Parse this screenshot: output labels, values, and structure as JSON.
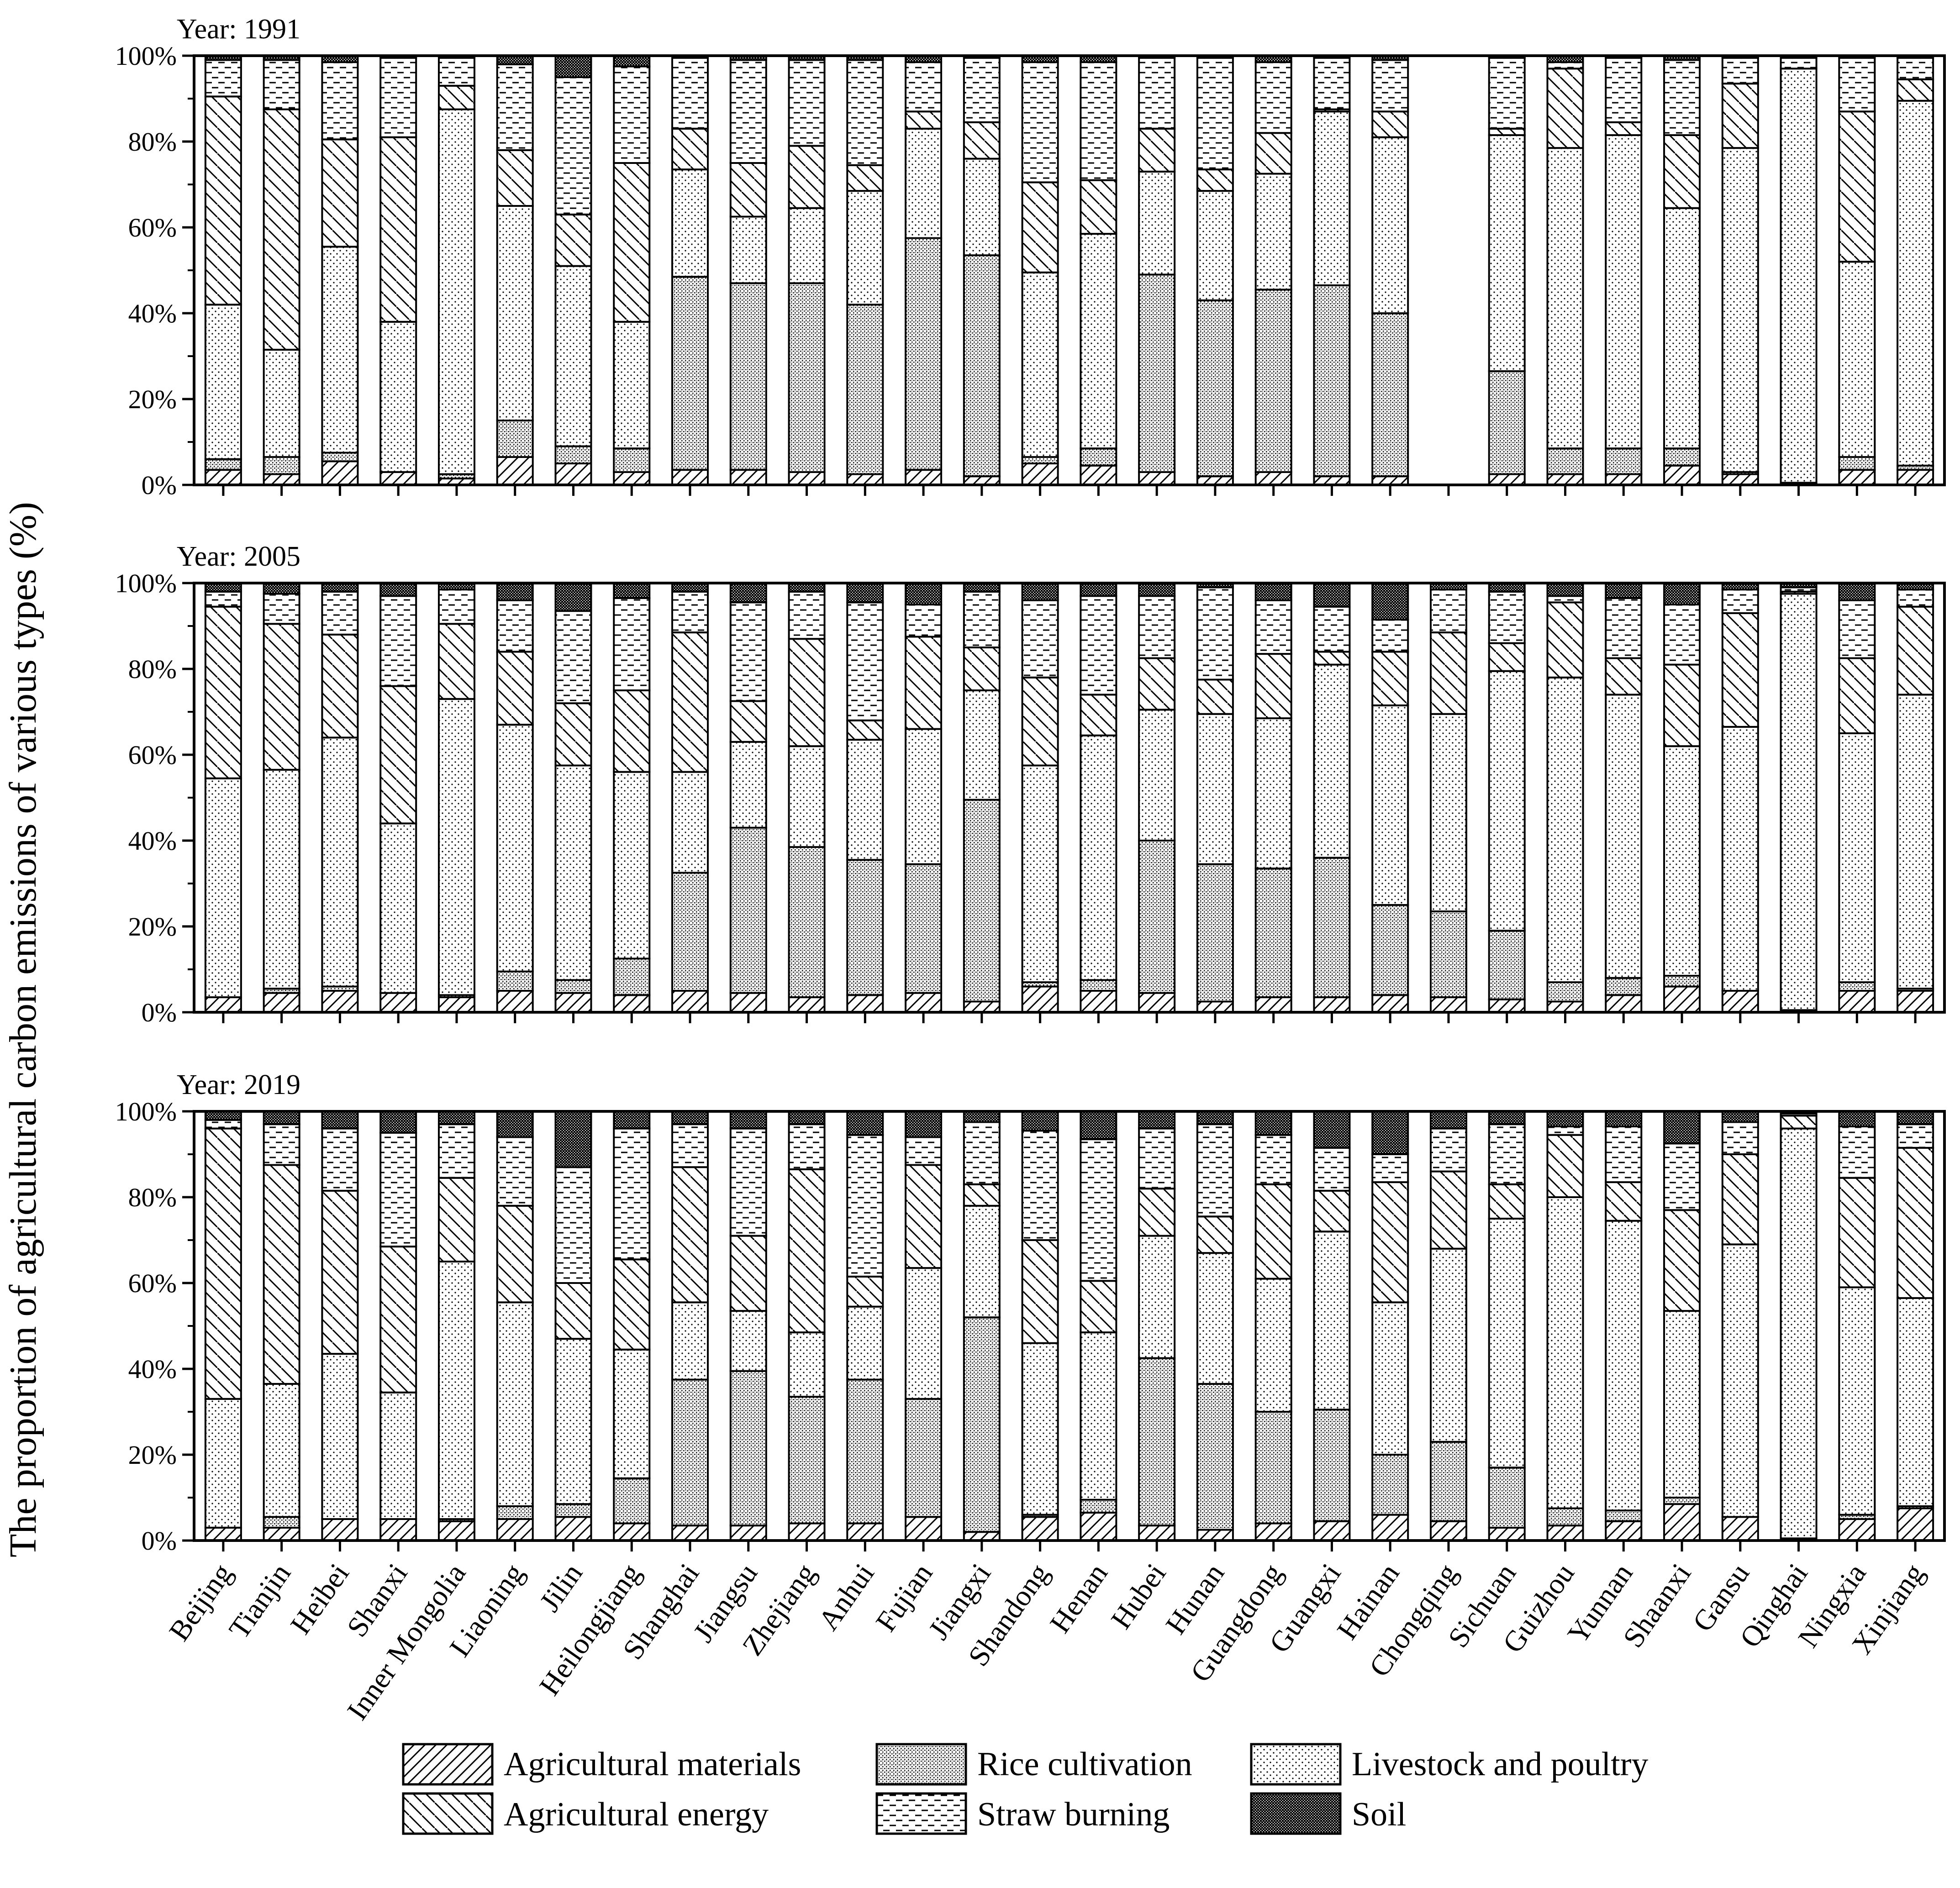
{
  "chart_data": {
    "type": "bar",
    "stacked": true,
    "ylabel": "The proportion of agricultural carbon emissions of various types (%)",
    "y_ticks": [
      "0%",
      "20%",
      "40%",
      "60%",
      "80%",
      "100%"
    ],
    "ylim": [
      0,
      100
    ],
    "categories": [
      "Beijing",
      "Tianjin",
      "Heibei",
      "Shanxi",
      "Inner Mongolia",
      "Liaoning",
      "Jilin",
      "Heilongjiang",
      "Shanghai",
      "Jiangsu",
      "Zhejiang",
      "Anhui",
      "Fujian",
      "Jiangxi",
      "Shandong",
      "Henan",
      "Hubei",
      "Hunan",
      "Guangdong",
      "Guangxi",
      "Hainan",
      "Chongqing",
      "Sichuan",
      "Guizhou",
      "Yunnan",
      "Shaanxi",
      "Gansu",
      "Qinghai",
      "Ningxia",
      "Xinjiang"
    ],
    "series_names": [
      "Agricultural materials",
      "Rice cultivation",
      "Livestock and poultry",
      "Agricultural energy",
      "Straw burning",
      "Soil"
    ],
    "legend": [
      "Agricultural materials",
      "Rice cultivation",
      "Livestock and poultry",
      "Agricultural energy",
      "Straw burning",
      "Soil"
    ],
    "panels": [
      {
        "title": "Year: 1991",
        "stacks": [
          [
            3.5,
            2.5,
            36,
            48.5,
            8.5,
            1
          ],
          [
            2.5,
            4,
            25,
            56,
            11.5,
            1
          ],
          [
            5.5,
            2,
            48,
            25,
            18,
            1.5
          ],
          [
            3,
            0,
            35,
            43,
            18.5,
            0.5
          ],
          [
            1.5,
            1,
            85,
            5.5,
            6.5,
            0.5
          ],
          [
            6.5,
            8.5,
            50,
            13,
            20,
            2
          ],
          [
            5,
            4,
            42,
            12,
            32,
            5
          ],
          [
            3,
            5.5,
            29.5,
            37,
            22.5,
            2.5
          ],
          [
            3.5,
            45,
            25,
            9.5,
            16.5,
            0.5
          ],
          [
            3.5,
            43.5,
            15.5,
            12.5,
            24,
            1
          ],
          [
            3,
            44,
            17.5,
            14.5,
            20,
            1
          ],
          [
            2.5,
            39.5,
            26.5,
            6,
            24.5,
            1
          ],
          [
            3.5,
            54,
            25.5,
            4,
            11.5,
            1.5
          ],
          [
            2,
            51.5,
            22.5,
            8.5,
            15,
            0.5
          ],
          [
            5,
            1.5,
            43,
            21,
            28,
            1.5
          ],
          [
            4.5,
            4,
            50,
            12.5,
            27.5,
            1.5
          ],
          [
            3,
            46,
            24,
            10,
            16.5,
            0.5
          ],
          [
            2,
            41,
            25.5,
            5,
            26,
            0.5
          ],
          [
            3,
            42.5,
            27,
            9.5,
            16.5,
            1.5
          ],
          [
            2,
            44.5,
            40.5,
            0.5,
            12,
            0.5
          ],
          [
            2,
            38,
            41,
            6,
            12,
            1
          ],
          [
            0,
            0,
            0,
            0,
            0,
            0
          ],
          [
            2.5,
            24,
            55,
            1.5,
            16.5,
            0.5
          ],
          [
            2.5,
            6,
            70,
            18.5,
            1.5,
            1.5
          ],
          [
            2.5,
            6,
            73,
            3,
            15,
            0.5
          ],
          [
            4.5,
            4,
            56,
            17,
            17.5,
            1
          ],
          [
            2.5,
            0.5,
            75.5,
            15,
            6,
            0.5
          ],
          [
            0.5,
            0,
            96.5,
            0,
            2.5,
            0.5
          ],
          [
            3.5,
            3,
            45.5,
            35,
            12.5,
            0.5
          ],
          [
            3.5,
            1,
            85,
            5,
            5,
            0.5
          ]
        ]
      },
      {
        "title": "Year: 2005",
        "stacks": [
          [
            3.5,
            0,
            51,
            40,
            3.5,
            2
          ],
          [
            4.5,
            1,
            51,
            34,
            7,
            2.5
          ],
          [
            5,
            1,
            58,
            24,
            10,
            2
          ],
          [
            4.5,
            0,
            39.5,
            32,
            21,
            3
          ],
          [
            3.5,
            0.5,
            69,
            17.5,
            8,
            1.5
          ],
          [
            5,
            4.5,
            57.5,
            17,
            12,
            4
          ],
          [
            4.5,
            3,
            50,
            14.5,
            21.5,
            6.5
          ],
          [
            4,
            8.5,
            43.5,
            19,
            21.5,
            3.5
          ],
          [
            5,
            27.5,
            23.5,
            32.5,
            9.5,
            2
          ],
          [
            4.5,
            38.5,
            20,
            9.5,
            23,
            4.5
          ],
          [
            3.5,
            35,
            23.5,
            25,
            11,
            2
          ],
          [
            4,
            31.5,
            28,
            4.5,
            27.5,
            4.5
          ],
          [
            4.5,
            30,
            31.5,
            21.5,
            7.5,
            5
          ],
          [
            2.5,
            47,
            25.5,
            10,
            13,
            2
          ],
          [
            6,
            1,
            50.5,
            20.5,
            18,
            4
          ],
          [
            5,
            2.5,
            57,
            9.5,
            23,
            3
          ],
          [
            4.5,
            35.5,
            30.5,
            12,
            14.5,
            3
          ],
          [
            2.5,
            32,
            35,
            8,
            21.5,
            1
          ],
          [
            3.5,
            30,
            35,
            15,
            12.5,
            4
          ],
          [
            3.5,
            32.5,
            45,
            3,
            10.5,
            5.5
          ],
          [
            4,
            21,
            46.5,
            12.5,
            7.5,
            8.5
          ],
          [
            3.5,
            20,
            46,
            19,
            10,
            1.5
          ],
          [
            3,
            16,
            60.5,
            6.5,
            12,
            2
          ],
          [
            2.5,
            4.5,
            71,
            17.5,
            1.5,
            3
          ],
          [
            4,
            4,
            66,
            8.5,
            14,
            3.5
          ],
          [
            6,
            2.5,
            53.5,
            19,
            14,
            5
          ],
          [
            5,
            0,
            61.5,
            26.5,
            5.5,
            1.5
          ],
          [
            0.5,
            0,
            97,
            0.5,
            1,
            1
          ],
          [
            5,
            2,
            58,
            17.5,
            13.5,
            4
          ],
          [
            5,
            0.5,
            68.5,
            20.5,
            4,
            1.5
          ]
        ]
      },
      {
        "title": "Year: 2019",
        "stacks": [
          [
            3,
            0,
            30,
            63,
            2,
            2
          ],
          [
            3,
            2.5,
            31,
            51,
            9.5,
            3
          ],
          [
            5,
            0,
            38.5,
            38,
            14.5,
            4
          ],
          [
            5,
            0,
            29.5,
            34,
            26.5,
            5
          ],
          [
            4.5,
            0.5,
            60,
            19.5,
            12.5,
            3
          ],
          [
            5,
            3,
            47.5,
            22.5,
            16,
            6
          ],
          [
            5.5,
            3,
            38.5,
            13,
            27,
            13
          ],
          [
            4,
            10.5,
            30,
            21,
            30.5,
            4
          ],
          [
            3.5,
            34,
            18,
            31.5,
            10,
            3
          ],
          [
            3.5,
            36,
            14,
            17.5,
            25,
            4
          ],
          [
            4,
            29.5,
            15,
            38,
            10.5,
            3
          ],
          [
            4,
            33.5,
            17,
            7,
            33,
            5.5
          ],
          [
            5.5,
            27.5,
            30.5,
            24,
            6.5,
            6
          ],
          [
            2,
            50,
            26,
            5,
            14.5,
            2.5
          ],
          [
            5.5,
            0.5,
            40,
            24,
            25.5,
            4.5
          ],
          [
            6.5,
            3,
            39,
            12,
            33,
            6.5
          ],
          [
            3.5,
            39,
            28.5,
            11,
            14,
            4
          ],
          [
            2.5,
            34,
            30.5,
            8.5,
            21.5,
            3
          ],
          [
            4,
            26,
            31,
            22,
            11.5,
            5.5
          ],
          [
            4.5,
            26,
            41.5,
            9.5,
            10,
            8.5
          ],
          [
            6,
            14,
            35.5,
            28,
            6.5,
            10
          ],
          [
            4.5,
            18.5,
            45,
            18,
            10,
            4
          ],
          [
            3,
            14,
            58,
            8,
            14,
            3
          ],
          [
            3.5,
            4,
            72.5,
            14.5,
            2,
            3.5
          ],
          [
            4.5,
            2.5,
            67.5,
            9,
            13,
            3.5
          ],
          [
            8.5,
            1.5,
            43.5,
            23.5,
            15.5,
            7.5
          ],
          [
            5.5,
            0,
            63.5,
            21,
            7.5,
            2.5
          ],
          [
            0.5,
            0,
            95.5,
            3,
            0.5,
            0.5
          ],
          [
            5,
            1,
            53,
            25.5,
            12,
            3.5
          ],
          [
            7.5,
            0.5,
            48.5,
            35,
            5.5,
            3
          ]
        ]
      }
    ]
  }
}
